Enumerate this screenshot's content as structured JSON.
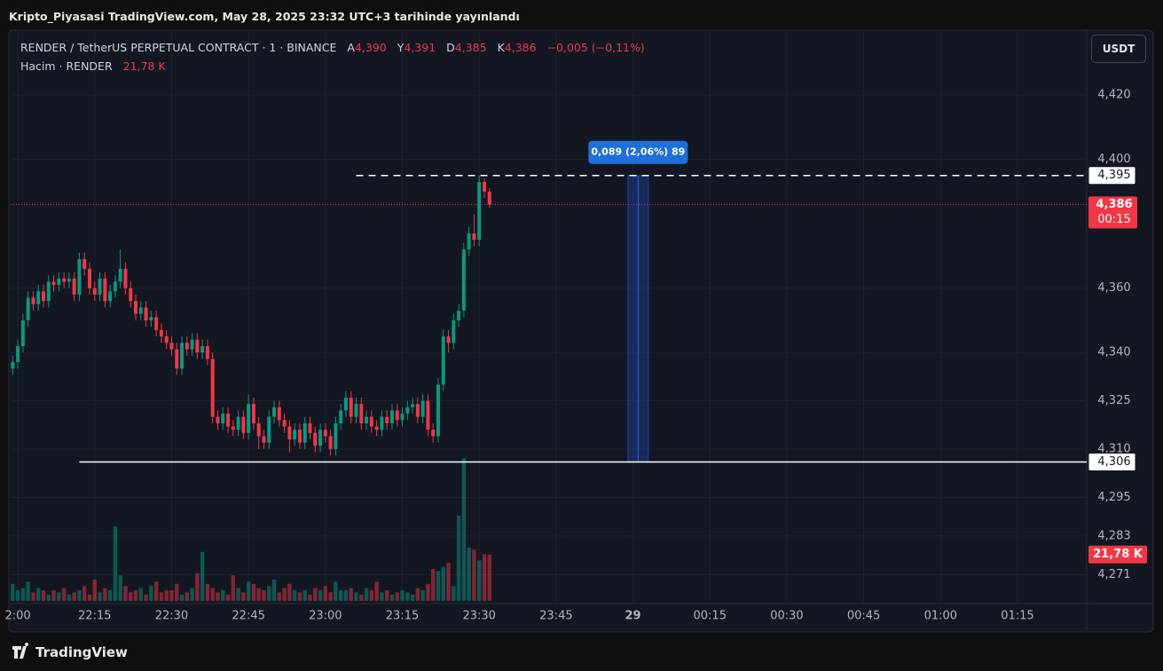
{
  "header": {
    "title": "Kripto_Piyasasi TradingView.com, May 28, 2025 23:32 UTC+3 tarihinde yayınlandı"
  },
  "footer": {
    "brand": "TradingView"
  },
  "currency_button": "USDT",
  "legend": {
    "symbol": "RENDER / TetherUS PERPETUAL CONTRACT · 1 · BINANCE",
    "open_key": "A",
    "open": "4,390",
    "high_key": "Y",
    "high": "4,391",
    "low_key": "D",
    "low": "4,385",
    "close_key": "K",
    "close": "4,386",
    "change": "−0,005 (−0,11%)",
    "volume_name": "Hacim · RENDER",
    "volume": "21,78 K"
  },
  "chart_data": {
    "type": "candlestick",
    "x": [
      1319,
      1320,
      1321,
      1322,
      1323,
      1324,
      1325,
      1326,
      1327,
      1328,
      1329,
      1330,
      1331,
      1332,
      1333,
      1334,
      1335,
      1336,
      1337,
      1338,
      1339,
      1340,
      1341,
      1342,
      1343,
      1344,
      1345,
      1346,
      1347,
      1348,
      1349,
      1350,
      1351,
      1352,
      1353,
      1354,
      1355,
      1356,
      1357,
      1358,
      1359,
      1360,
      1361,
      1362,
      1363,
      1364,
      1365,
      1366,
      1367,
      1368,
      1369,
      1370,
      1371,
      1372,
      1373,
      1374,
      1375,
      1376,
      1377,
      1378,
      1379,
      1380,
      1381,
      1382,
      1383,
      1384,
      1385,
      1386,
      1387,
      1388,
      1389,
      1390,
      1391,
      1392,
      1393,
      1394,
      1395,
      1396,
      1397,
      1398,
      1399,
      1400,
      1401,
      1402,
      1403,
      1404,
      1405,
      1406,
      1407,
      1408,
      1409,
      1410,
      1411,
      1412
    ],
    "open": [
      4.335,
      4.337,
      4.342,
      4.35,
      4.357,
      4.355,
      4.359,
      4.356,
      4.362,
      4.361,
      4.363,
      4.362,
      4.363,
      4.358,
      4.369,
      4.366,
      4.36,
      4.358,
      4.363,
      4.356,
      4.359,
      4.362,
      4.366,
      4.36,
      4.356,
      4.352,
      4.354,
      4.35,
      4.351,
      4.347,
      4.345,
      4.343,
      4.341,
      4.335,
      4.343,
      4.341,
      4.344,
      4.34,
      4.342,
      4.338,
      4.32,
      4.318,
      4.321,
      4.317,
      4.316,
      4.32,
      4.315,
      4.324,
      4.318,
      4.314,
      4.312,
      4.32,
      4.323,
      4.319,
      4.317,
      4.313,
      4.316,
      4.312,
      4.318,
      4.315,
      4.311,
      4.316,
      4.314,
      4.31,
      4.318,
      4.322,
      4.326,
      4.32,
      4.324,
      4.318,
      4.32,
      4.317,
      4.316,
      4.32,
      4.318,
      4.322,
      4.319,
      4.321,
      4.323,
      4.324,
      4.32,
      4.325,
      4.316,
      4.314,
      4.33,
      4.345,
      4.343,
      4.35,
      4.353,
      4.372,
      4.377,
      4.375,
      4.393,
      4.39
    ],
    "high": [
      4.339,
      4.344,
      4.352,
      4.359,
      4.359,
      4.361,
      4.361,
      4.364,
      4.364,
      4.365,
      4.365,
      4.365,
      4.365,
      4.371,
      4.371,
      4.368,
      4.362,
      4.365,
      4.365,
      4.361,
      4.364,
      4.372,
      4.368,
      4.362,
      4.358,
      4.356,
      4.356,
      4.353,
      4.353,
      4.349,
      4.347,
      4.345,
      4.343,
      4.345,
      4.345,
      4.346,
      4.346,
      4.344,
      4.344,
      4.34,
      4.322,
      4.323,
      4.323,
      4.319,
      4.322,
      4.322,
      4.327,
      4.326,
      4.32,
      4.316,
      4.322,
      4.325,
      4.325,
      4.321,
      4.319,
      4.318,
      4.318,
      4.32,
      4.32,
      4.317,
      4.318,
      4.318,
      4.316,
      4.32,
      4.324,
      4.328,
      4.328,
      4.326,
      4.326,
      4.322,
      4.322,
      4.319,
      4.322,
      4.322,
      4.324,
      4.324,
      4.323,
      4.325,
      4.326,
      4.326,
      4.327,
      4.327,
      4.318,
      4.332,
      4.347,
      4.347,
      4.352,
      4.355,
      4.374,
      4.379,
      4.383,
      4.395,
      4.394,
      4.391
    ],
    "low": [
      4.333,
      4.335,
      4.34,
      4.348,
      4.353,
      4.353,
      4.354,
      4.354,
      4.359,
      4.359,
      4.36,
      4.36,
      4.356,
      4.356,
      4.364,
      4.358,
      4.356,
      4.356,
      4.354,
      4.354,
      4.357,
      4.36,
      4.358,
      4.354,
      4.35,
      4.35,
      4.348,
      4.348,
      4.345,
      4.343,
      4.341,
      4.339,
      4.333,
      4.333,
      4.339,
      4.339,
      4.338,
      4.338,
      4.336,
      4.318,
      4.316,
      4.316,
      4.315,
      4.314,
      4.314,
      4.313,
      4.313,
      4.316,
      4.31,
      4.31,
      4.31,
      4.318,
      4.317,
      4.315,
      4.309,
      4.311,
      4.31,
      4.31,
      4.313,
      4.309,
      4.309,
      4.312,
      4.308,
      4.308,
      4.316,
      4.32,
      4.318,
      4.318,
      4.316,
      4.316,
      4.315,
      4.314,
      4.314,
      4.316,
      4.316,
      4.317,
      4.317,
      4.319,
      4.321,
      4.318,
      4.318,
      4.314,
      4.312,
      4.312,
      4.328,
      4.34,
      4.341,
      4.348,
      4.351,
      4.37,
      4.373,
      4.373,
      4.388,
      4.385
    ],
    "close": [
      4.337,
      4.342,
      4.35,
      4.357,
      4.355,
      4.359,
      4.356,
      4.362,
      4.361,
      4.363,
      4.362,
      4.363,
      4.358,
      4.369,
      4.366,
      4.36,
      4.358,
      4.363,
      4.356,
      4.359,
      4.362,
      4.366,
      4.36,
      4.356,
      4.352,
      4.354,
      4.35,
      4.351,
      4.347,
      4.345,
      4.343,
      4.341,
      4.335,
      4.343,
      4.341,
      4.344,
      4.34,
      4.342,
      4.338,
      4.32,
      4.318,
      4.321,
      4.317,
      4.316,
      4.32,
      4.315,
      4.324,
      4.318,
      4.314,
      4.312,
      4.32,
      4.323,
      4.319,
      4.317,
      4.313,
      4.316,
      4.312,
      4.318,
      4.315,
      4.311,
      4.316,
      4.314,
      4.31,
      4.318,
      4.322,
      4.326,
      4.32,
      4.324,
      4.318,
      4.32,
      4.317,
      4.316,
      4.32,
      4.318,
      4.322,
      4.319,
      4.321,
      4.323,
      4.324,
      4.32,
      4.325,
      4.316,
      4.314,
      4.33,
      4.345,
      4.343,
      4.35,
      4.353,
      4.372,
      4.377,
      4.375,
      4.393,
      4.39,
      4.386
    ],
    "volume": [
      8,
      5,
      6,
      9,
      4,
      6,
      5,
      3,
      5,
      4,
      6,
      3,
      4,
      5,
      7,
      3,
      10,
      4,
      6,
      5,
      35,
      12,
      7,
      4,
      5,
      6,
      3,
      7,
      9,
      4,
      5,
      5,
      8,
      3,
      4,
      6,
      13,
      23,
      8,
      6,
      4,
      5,
      3,
      12,
      6,
      4,
      9,
      8,
      6,
      5,
      7,
      10,
      4,
      6,
      8,
      5,
      4,
      5,
      3,
      6,
      5,
      7,
      4,
      9,
      5,
      5,
      6,
      4,
      3,
      6,
      5,
      9,
      4,
      5,
      3,
      4,
      5,
      4,
      3,
      6,
      5,
      8,
      15,
      14,
      16,
      18,
      7,
      40,
      67,
      25,
      24,
      19,
      22,
      21.78
    ],
    "volume_last_label": "21,78 K",
    "up_color": "#089981",
    "down_color": "#f23645",
    "xlim": [
      1318.6,
      1528.5
    ],
    "xticks": [
      {
        "value": 1320,
        "label": "2:00"
      },
      {
        "value": 1335,
        "label": "22:15"
      },
      {
        "value": 1350,
        "label": "22:30"
      },
      {
        "value": 1365,
        "label": "22:45"
      },
      {
        "value": 1380,
        "label": "23:00"
      },
      {
        "value": 1395,
        "label": "23:15"
      },
      {
        "value": 1410,
        "label": "23:30"
      },
      {
        "value": 1425,
        "label": "23:45"
      },
      {
        "value": 1440,
        "label": "29"
      },
      {
        "value": 1455,
        "label": "00:15"
      },
      {
        "value": 1470,
        "label": "00:30"
      },
      {
        "value": 1485,
        "label": "00:45"
      },
      {
        "value": 1500,
        "label": "01:00"
      },
      {
        "value": 1515,
        "label": "01:15"
      }
    ],
    "ylim": [
      4.262,
      4.4385
    ],
    "yticks": [
      {
        "value": 4.42,
        "label": "4,420"
      },
      {
        "value": 4.4,
        "label": "4,400"
      },
      {
        "value": 4.36,
        "label": "4,360"
      },
      {
        "value": 4.34,
        "label": "4,340"
      },
      {
        "value": 4.325,
        "label": "4,325"
      },
      {
        "value": 4.31,
        "label": "4,310"
      },
      {
        "value": 4.295,
        "label": "4,295"
      },
      {
        "value": 4.283,
        "label": "4,283"
      },
      {
        "value": 4.271,
        "label": "4,271"
      }
    ],
    "grid": true,
    "price_lines": [
      {
        "value": 4.395,
        "label": "4,395",
        "from_x": 1386,
        "style": "dashed"
      },
      {
        "value": 4.306,
        "label": "4,306",
        "from_x": 1332,
        "style": "solid"
      }
    ],
    "last_price": {
      "value": 4.386,
      "label": "4,386",
      "countdown": "00:15"
    },
    "measure": {
      "label": "0,089 (2,06%) 89",
      "from": 4.306,
      "to": 4.395,
      "x_from": 1439,
      "x_to": 1443
    }
  }
}
